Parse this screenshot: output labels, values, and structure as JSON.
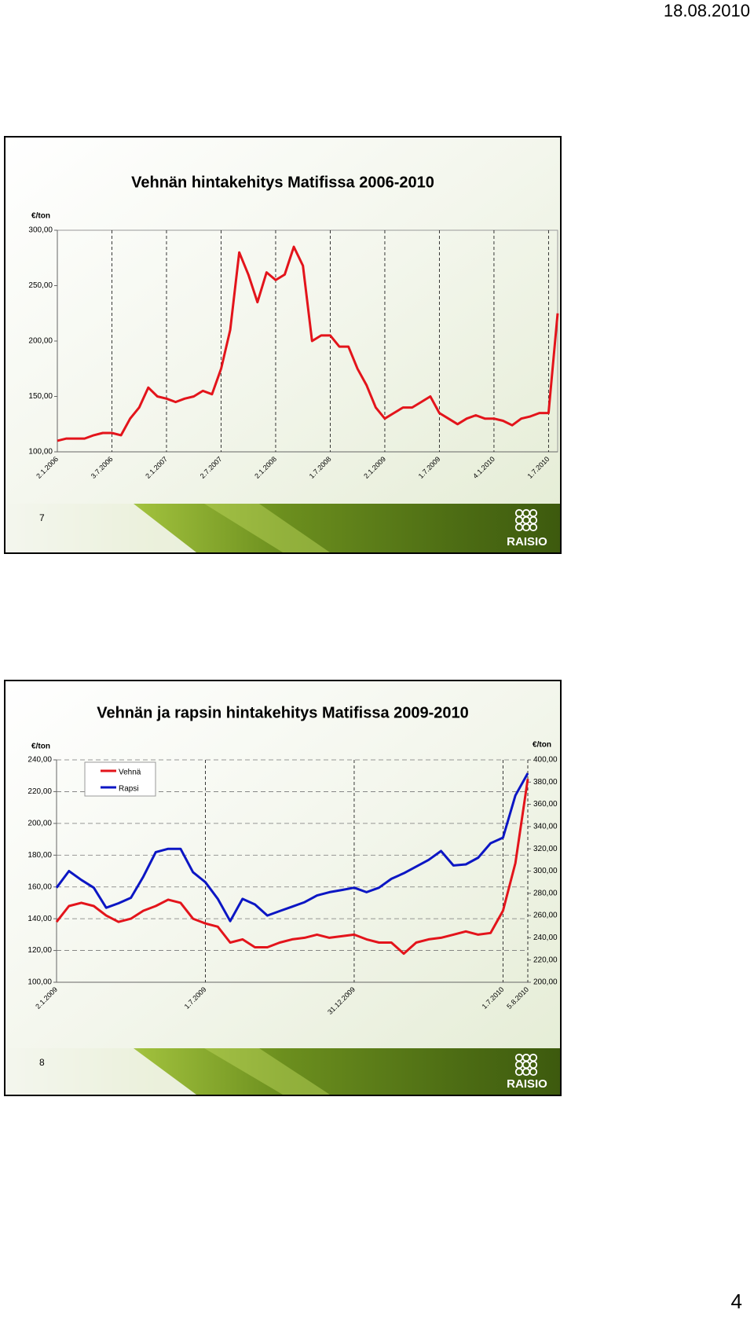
{
  "date": "18.08.2010",
  "chart_data": [
    {
      "type": "line",
      "title": "Vehnän  hintakehitys Matifissa 2006-2010",
      "y_label": "€/ton",
      "categories": [
        "2.1.2006",
        null,
        null,
        null,
        null,
        null,
        "3.7.2006",
        null,
        null,
        null,
        null,
        null,
        "2.1.2007",
        null,
        null,
        null,
        null,
        null,
        "2.7.2007",
        null,
        null,
        null,
        null,
        null,
        "2.1.2008",
        null,
        null,
        null,
        null,
        null,
        "1.7.2008",
        null,
        null,
        null,
        null,
        null,
        "2.1.2009",
        null,
        null,
        null,
        null,
        null,
        "1.7.2009",
        null,
        null,
        null,
        null,
        null,
        "4.1.2010",
        null,
        null,
        null,
        null,
        null,
        "1.7.2010",
        null
      ],
      "values": [
        110,
        112,
        112,
        112,
        115,
        117,
        117,
        115,
        130,
        140,
        158,
        150,
        148,
        145,
        148,
        150,
        155,
        152,
        175,
        210,
        280,
        260,
        235,
        262,
        255,
        260,
        285,
        268,
        200,
        205,
        205,
        195,
        195,
        175,
        160,
        140,
        130,
        135,
        140,
        140,
        145,
        150,
        135,
        130,
        125,
        130,
        133,
        130,
        130,
        128,
        124,
        130,
        132,
        135,
        135,
        225
      ],
      "color": "#e3141b",
      "ylim": [
        100,
        300
      ],
      "yticks": [
        {
          "value": 100,
          "label": "100,00"
        },
        {
          "value": 150,
          "label": "150,00"
        },
        {
          "value": 200,
          "label": "200,00"
        },
        {
          "value": 250,
          "label": "250,00"
        },
        {
          "value": 300,
          "label": "300,00"
        }
      ],
      "xgrid": true,
      "ygrid": false
    },
    {
      "type": "line",
      "title": "Vehnän ja rapsin hintakehitys Matifissa 2009-2010",
      "y_label": "€/ton",
      "y2_label": "€/ton",
      "categories": [
        "2.1.2009",
        null,
        null,
        null,
        null,
        null,
        null,
        null,
        null,
        null,
        null,
        null,
        "1.7.2009",
        null,
        null,
        null,
        null,
        null,
        null,
        null,
        null,
        null,
        null,
        null,
        "31.12.2009",
        null,
        null,
        null,
        null,
        null,
        null,
        null,
        null,
        null,
        null,
        null,
        "1.7.2010",
        null,
        "5.8.2010"
      ],
      "series": [
        {
          "name": "Vehnä",
          "color": "#e3141b",
          "values": [
            138,
            148,
            150,
            148,
            142,
            138,
            140,
            145,
            148,
            152,
            150,
            140,
            137,
            135,
            125,
            127,
            122,
            122,
            125,
            127,
            128,
            130,
            128,
            129,
            130,
            127,
            125,
            125,
            118,
            125,
            127,
            128,
            130,
            132,
            130,
            131,
            145,
            175,
            228
          ]
        },
        {
          "name": "Rapsi",
          "color": "#0c16c4",
          "axis": "y2",
          "values": [
            285,
            300,
            292,
            285,
            267,
            271,
            276,
            295,
            317,
            320,
            320,
            299,
            290,
            275,
            255,
            275,
            270,
            260,
            264,
            268,
            272,
            278,
            281,
            283,
            285,
            281,
            285,
            293,
            298,
            304,
            310,
            318,
            305,
            306,
            312,
            325,
            330,
            368,
            388
          ]
        }
      ],
      "ylim": [
        100,
        240
      ],
      "yticks": [
        {
          "value": 100,
          "label": "100,00"
        },
        {
          "value": 120,
          "label": "120,00"
        },
        {
          "value": 140,
          "label": "140,00"
        },
        {
          "value": 160,
          "label": "160,00"
        },
        {
          "value": 180,
          "label": "180,00"
        },
        {
          "value": 200,
          "label": "200,00"
        },
        {
          "value": 220,
          "label": "220,00"
        },
        {
          "value": 240,
          "label": "240,00"
        }
      ],
      "y2lim": [
        200,
        400
      ],
      "y2ticks": [
        {
          "value": 200,
          "label": "200,00"
        },
        {
          "value": 220,
          "label": "220,00"
        },
        {
          "value": 240,
          "label": "240,00"
        },
        {
          "value": 260,
          "label": "260,00"
        },
        {
          "value": 280,
          "label": "280,00"
        },
        {
          "value": 300,
          "label": "300,00"
        },
        {
          "value": 320,
          "label": "320,00"
        },
        {
          "value": 340,
          "label": "340,00"
        },
        {
          "value": 360,
          "label": "360,00"
        },
        {
          "value": 380,
          "label": "380,00"
        },
        {
          "value": 400,
          "label": "400,00"
        }
      ],
      "xgrid": true,
      "ygrid": true,
      "legend": "top-left"
    }
  ],
  "slides": [
    {
      "number": "7",
      "logo": "RAISIO"
    },
    {
      "number": "8",
      "logo": "RAISIO"
    }
  ],
  "page_number": "4"
}
